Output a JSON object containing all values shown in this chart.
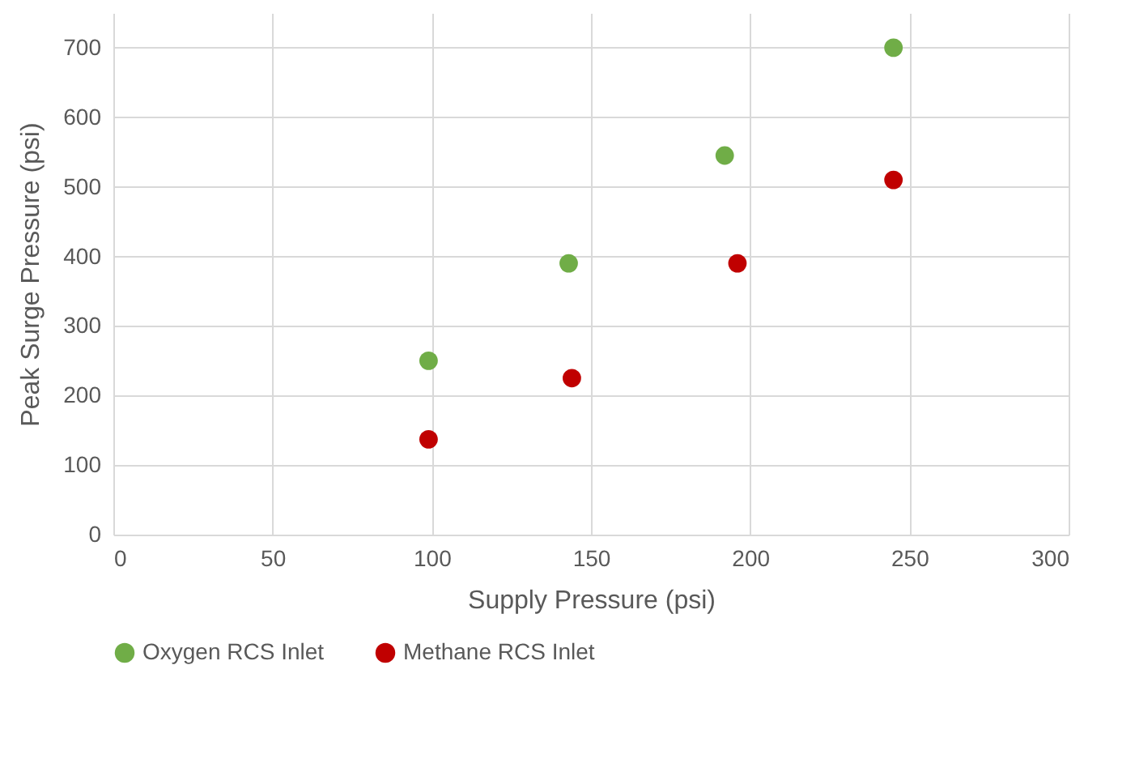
{
  "chart_data": {
    "type": "scatter",
    "xlabel": "Supply Pressure (psi)",
    "ylabel": "Peak Surge Pressure (psi)",
    "xlim": [
      0,
      300
    ],
    "xticks": [
      0,
      50,
      100,
      150,
      200,
      250,
      300
    ],
    "ylim": [
      0,
      750
    ],
    "yticks": [
      0,
      100,
      200,
      300,
      400,
      500,
      600,
      700
    ],
    "grid": true,
    "legend": "bottom",
    "marker": "circle",
    "series": [
      {
        "name": "Oxygen RCS Inlet",
        "color": "#70ad47",
        "x": [
          99,
          143,
          192,
          245
        ],
        "values": [
          250,
          390,
          545,
          700
        ]
      },
      {
        "name": "Methane RCS Inlet",
        "color": "#c00000",
        "x": [
          99,
          144,
          196,
          245
        ],
        "values": [
          137,
          225,
          390,
          510
        ]
      }
    ]
  }
}
